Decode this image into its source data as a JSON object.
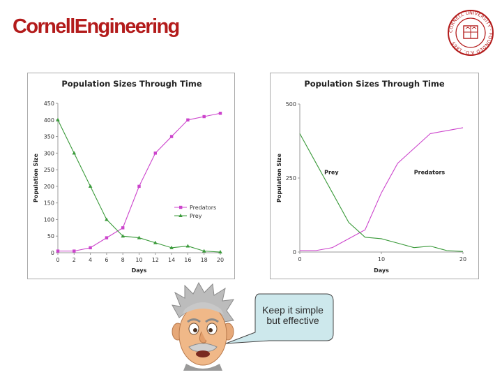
{
  "header": {
    "logo_text": "CornellEngineering",
    "brand_color": "#b31b1b"
  },
  "seal": {
    "text": "CORNELL UNIVERSITY · FOUNDED A.D. 1865",
    "icon": "cornell-seal-icon"
  },
  "chart_data": [
    {
      "type": "line",
      "title": "Population Sizes Through Time",
      "xlabel": "Days",
      "ylabel": "Population Size",
      "xlim": [
        0,
        20
      ],
      "ylim": [
        0,
        450
      ],
      "xticks": [
        0,
        2,
        4,
        6,
        8,
        10,
        12,
        14,
        16,
        18,
        20
      ],
      "yticks": [
        0,
        50,
        100,
        150,
        200,
        250,
        300,
        350,
        400,
        450
      ],
      "grid": false,
      "legend": "right",
      "x": [
        0,
        2,
        4,
        6,
        8,
        10,
        12,
        14,
        16,
        18,
        20
      ],
      "series": [
        {
          "name": "Predators",
          "color": "#cc44cc",
          "marker": "square",
          "values": [
            5,
            5,
            15,
            45,
            75,
            200,
            300,
            350,
            400,
            410,
            420
          ]
        },
        {
          "name": "Prey",
          "color": "#3a9a3a",
          "marker": "triangle",
          "values": [
            400,
            300,
            200,
            100,
            50,
            45,
            30,
            15,
            20,
            5,
            2
          ]
        }
      ]
    },
    {
      "type": "line",
      "title": "Population Sizes Through Time",
      "xlabel": "Days",
      "ylabel": "Population Size",
      "xlim": [
        0,
        20
      ],
      "ylim": [
        0,
        500
      ],
      "xticks": [
        0,
        10,
        20
      ],
      "yticks": [
        0,
        250,
        500
      ],
      "grid": false,
      "legend": "inline labels",
      "labels": [
        {
          "text": "Prey",
          "x": 3,
          "y": 270
        },
        {
          "text": "Predators",
          "x": 14,
          "y": 270
        }
      ],
      "x": [
        0,
        2,
        4,
        6,
        8,
        10,
        12,
        14,
        16,
        18,
        20
      ],
      "series": [
        {
          "name": "Predators",
          "color": "#cc44cc",
          "values": [
            5,
            5,
            15,
            45,
            75,
            200,
            300,
            350,
            400,
            410,
            420
          ]
        },
        {
          "name": "Prey",
          "color": "#3a9a3a",
          "values": [
            400,
            300,
            200,
            100,
            50,
            45,
            30,
            15,
            20,
            5,
            2
          ]
        }
      ]
    }
  ],
  "callout": {
    "line1": "Keep it simple",
    "line2": "but effective",
    "bubble_color": "#cde8ec",
    "character_icon": "einstein-cartoon-icon"
  }
}
